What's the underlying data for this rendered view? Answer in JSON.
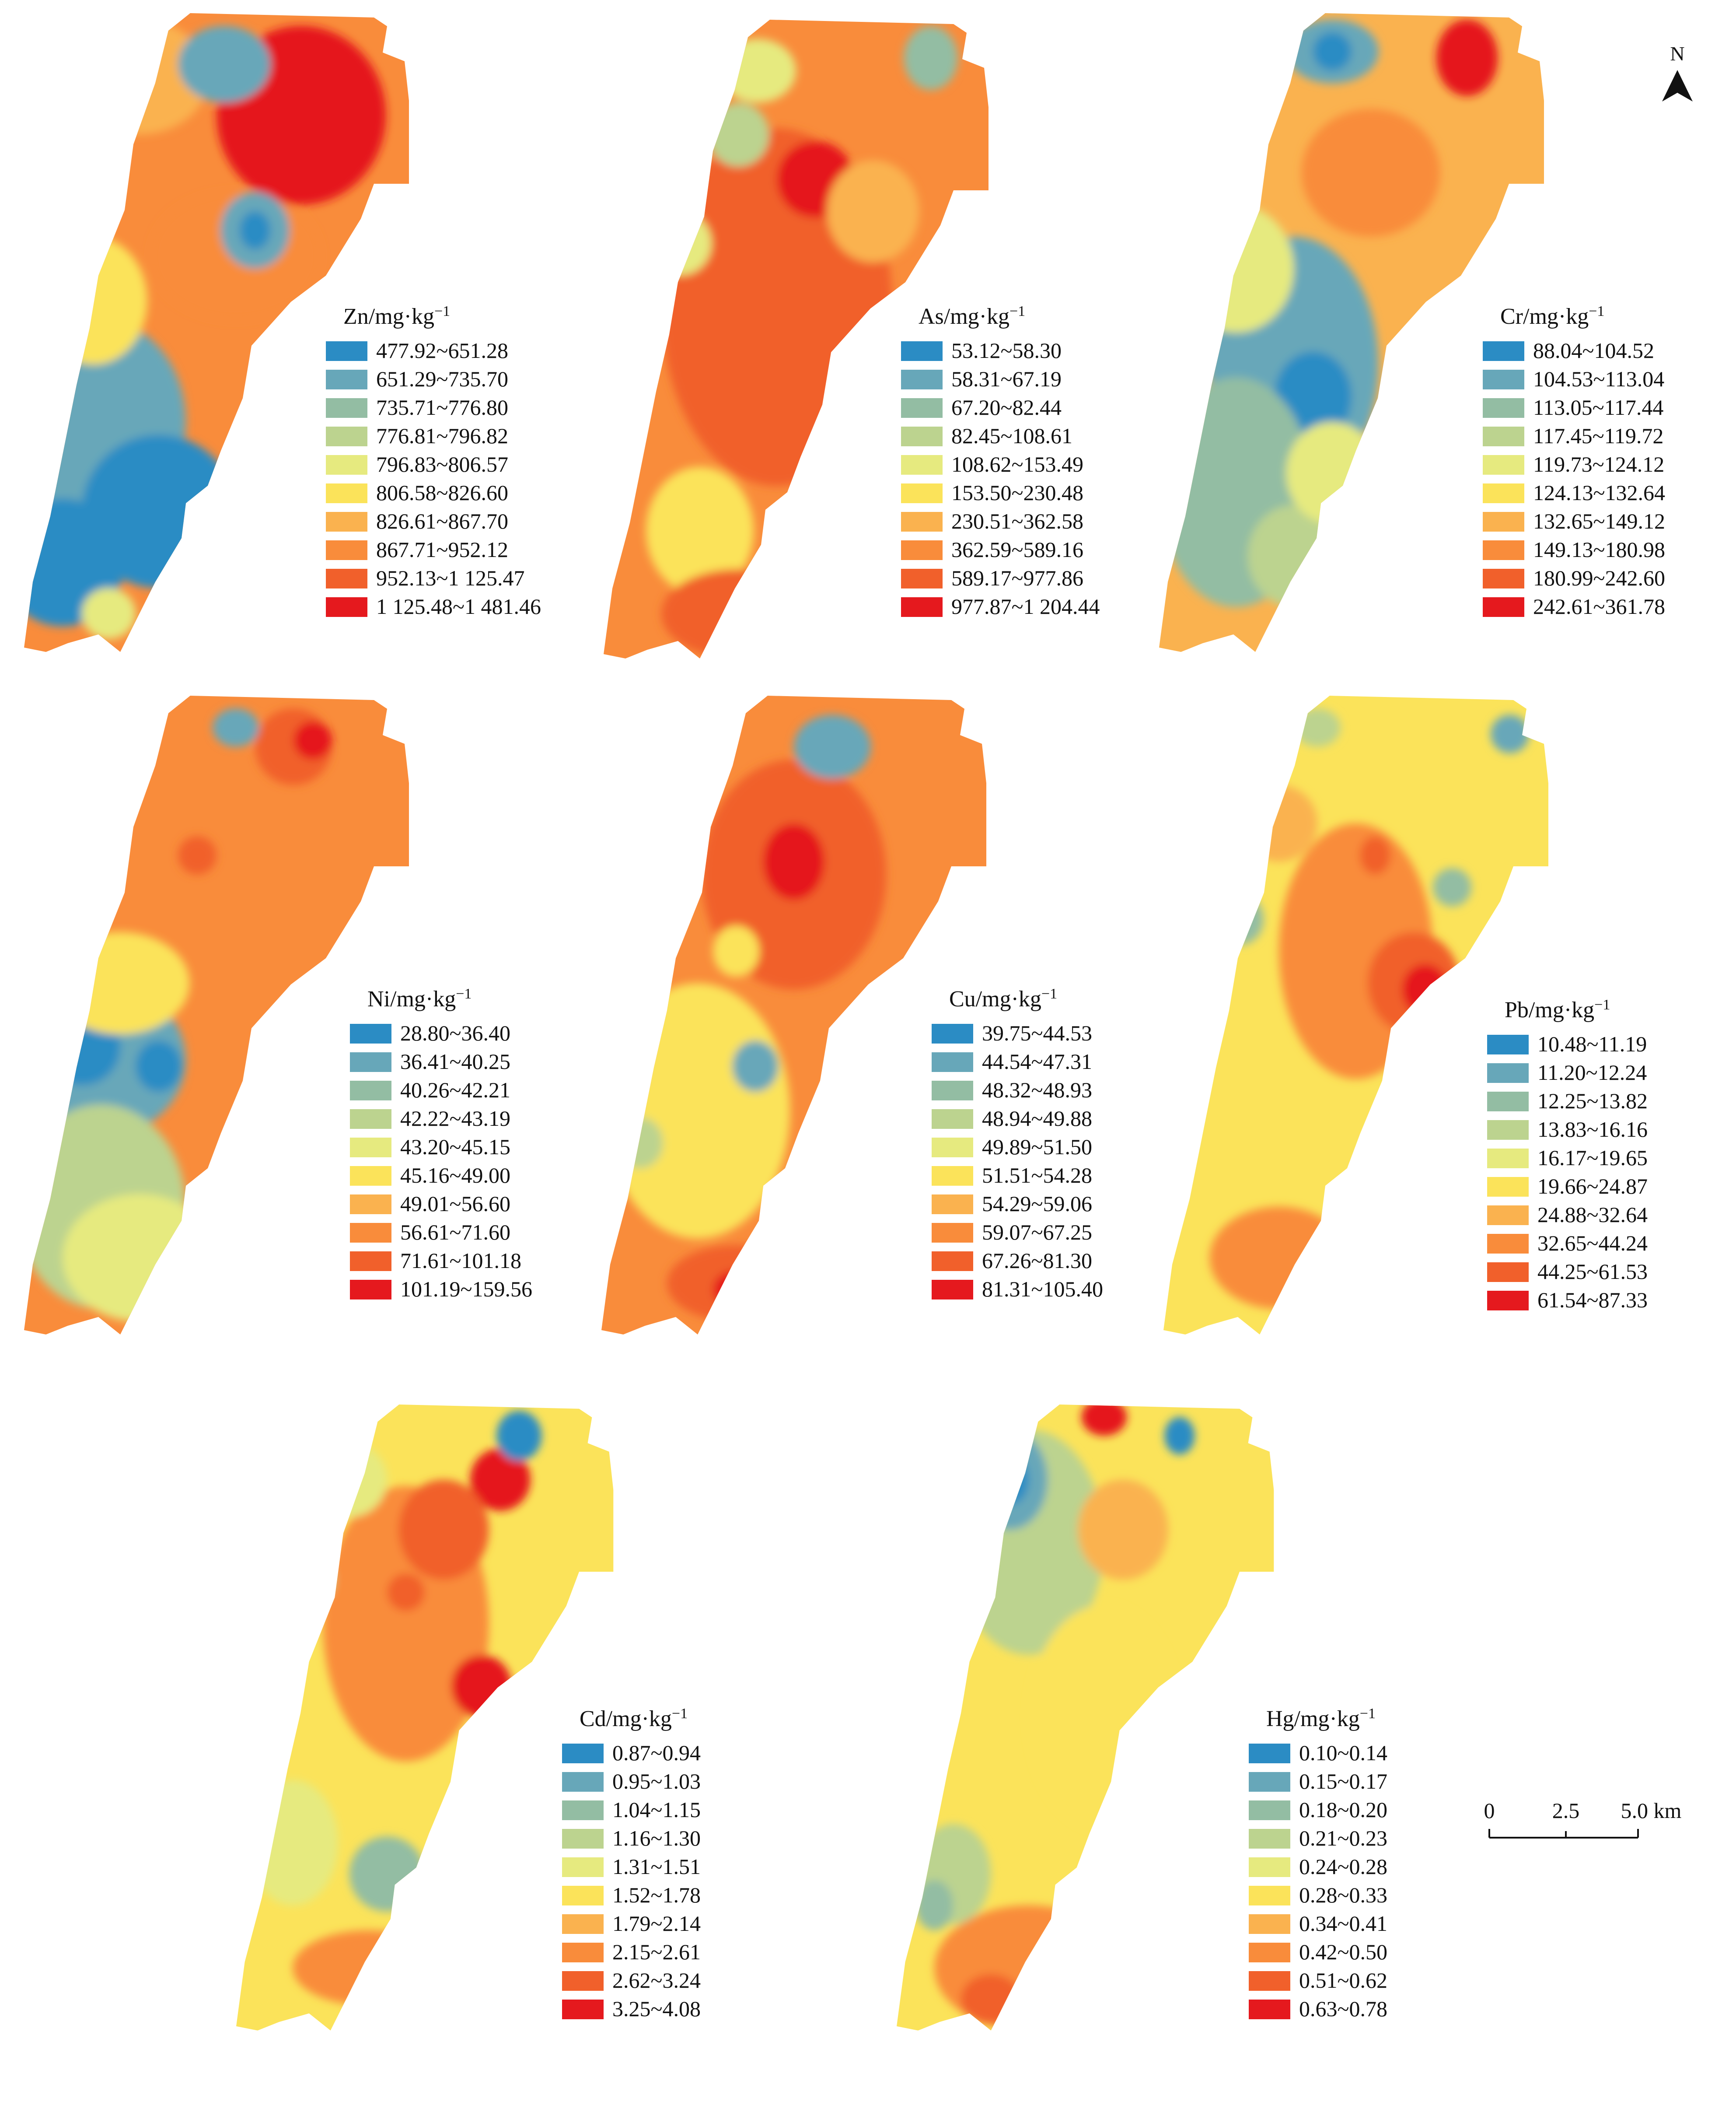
{
  "palette": [
    "#2b8cc4",
    "#67a7b9",
    "#93bda3",
    "#bcd38f",
    "#e6ea7f",
    "#fbe35a",
    "#fab24f",
    "#f98c3b",
    "#f1602b",
    "#e5191e"
  ],
  "north": {
    "label": "N"
  },
  "scale_bar": {
    "labels": [
      "0",
      "2.5",
      "5.0 km"
    ]
  },
  "maps": [
    {
      "element": "Zn",
      "unit": "/mg·kg",
      "exp": "−1",
      "ranges": [
        "477.92~651.28",
        "651.29~735.70",
        "735.71~776.80",
        "776.81~796.82",
        "796.83~806.57",
        "806.58~826.60",
        "826.61~867.70",
        "867.71~952.12",
        "952.13~1 125.47",
        "1 125.48~1 481.46"
      ],
      "base_class": 7,
      "blobs": [
        [
          0.3,
          0.1,
          0.18,
          0.09,
          6
        ],
        [
          0.72,
          0.16,
          0.22,
          0.14,
          9
        ],
        [
          0.55,
          0.38,
          0.22,
          0.1,
          7
        ],
        [
          0.6,
          0.34,
          0.09,
          0.06,
          1
        ],
        [
          0.6,
          0.34,
          0.04,
          0.03,
          0
        ],
        [
          0.52,
          0.08,
          0.12,
          0.06,
          1
        ],
        [
          0.1,
          0.3,
          0.08,
          0.05,
          3
        ],
        [
          0.2,
          0.64,
          0.22,
          0.16,
          1
        ],
        [
          0.35,
          0.78,
          0.2,
          0.12,
          0
        ],
        [
          0.1,
          0.86,
          0.16,
          0.1,
          0
        ],
        [
          0.22,
          0.94,
          0.07,
          0.04,
          4
        ],
        [
          0.18,
          0.45,
          0.14,
          0.1,
          5
        ]
      ]
    },
    {
      "element": "As",
      "unit": "/mg·kg",
      "exp": "−1",
      "ranges": [
        "53.12~58.30",
        "58.31~67.19",
        "67.20~82.44",
        "82.45~108.61",
        "108.62~153.49",
        "153.50~230.48",
        "230.51~362.58",
        "362.59~589.16",
        "589.17~977.86",
        "977.87~1 204.44"
      ],
      "base_class": 7,
      "blobs": [
        [
          0.45,
          0.45,
          0.3,
          0.28,
          8
        ],
        [
          0.55,
          0.25,
          0.1,
          0.06,
          9
        ],
        [
          0.25,
          0.8,
          0.14,
          0.1,
          5
        ],
        [
          0.35,
          0.93,
          0.2,
          0.07,
          8
        ],
        [
          0.2,
          0.35,
          0.08,
          0.05,
          4
        ],
        [
          0.4,
          0.08,
          0.1,
          0.05,
          4
        ],
        [
          0.85,
          0.06,
          0.07,
          0.05,
          2
        ],
        [
          0.35,
          0.18,
          0.08,
          0.05,
          3
        ],
        [
          0.7,
          0.3,
          0.12,
          0.08,
          6
        ]
      ]
    },
    {
      "element": "Cr",
      "unit": "/mg·kg",
      "exp": "−1",
      "ranges": [
        "88.04~104.52",
        "104.53~113.04",
        "113.05~117.44",
        "117.45~119.72",
        "119.73~124.12",
        "124.13~132.64",
        "132.65~149.12",
        "149.13~180.98",
        "180.99~242.60",
        "242.61~361.78"
      ],
      "base_class": 6,
      "blobs": [
        [
          0.55,
          0.25,
          0.18,
          0.1,
          7
        ],
        [
          0.45,
          0.06,
          0.12,
          0.05,
          1
        ],
        [
          0.45,
          0.06,
          0.05,
          0.03,
          0
        ],
        [
          0.8,
          0.07,
          0.08,
          0.06,
          9
        ],
        [
          0.35,
          0.55,
          0.22,
          0.2,
          1
        ],
        [
          0.4,
          0.6,
          0.1,
          0.07,
          0
        ],
        [
          0.2,
          0.75,
          0.2,
          0.18,
          2
        ],
        [
          0.35,
          0.85,
          0.12,
          0.08,
          3
        ],
        [
          0.2,
          0.4,
          0.15,
          0.1,
          4
        ],
        [
          0.45,
          0.72,
          0.12,
          0.08,
          4
        ]
      ]
    },
    {
      "element": "Ni",
      "unit": "/mg·kg",
      "exp": "−1",
      "ranges": [
        "28.80~36.40",
        "36.41~40.25",
        "40.26~42.21",
        "42.22~43.19",
        "43.20~45.15",
        "45.16~49.00",
        "49.01~56.60",
        "56.61~71.60",
        "71.61~101.18",
        "101.19~159.56"
      ],
      "base_class": 7,
      "blobs": [
        [
          0.2,
          0.57,
          0.22,
          0.12,
          1
        ],
        [
          0.15,
          0.55,
          0.1,
          0.06,
          0
        ],
        [
          0.35,
          0.58,
          0.06,
          0.04,
          0
        ],
        [
          0.2,
          0.8,
          0.22,
          0.16,
          3
        ],
        [
          0.3,
          0.88,
          0.2,
          0.1,
          4
        ],
        [
          0.25,
          0.45,
          0.18,
          0.08,
          5
        ],
        [
          0.7,
          0.08,
          0.1,
          0.06,
          8
        ],
        [
          0.75,
          0.07,
          0.05,
          0.03,
          9
        ],
        [
          0.55,
          0.05,
          0.06,
          0.03,
          1
        ],
        [
          0.45,
          0.25,
          0.05,
          0.03,
          8
        ]
      ]
    },
    {
      "element": "Cu",
      "unit": "/mg·kg",
      "exp": "−1",
      "ranges": [
        "39.75~44.53",
        "44.54~47.31",
        "48.32~48.93",
        "48.94~49.88",
        "49.89~51.50",
        "51.51~54.28",
        "54.29~59.06",
        "59.07~67.25",
        "67.26~81.30",
        "81.31~105.40"
      ],
      "base_class": 7,
      "blobs": [
        [
          0.5,
          0.28,
          0.24,
          0.18,
          8
        ],
        [
          0.5,
          0.26,
          0.08,
          0.06,
          9
        ],
        [
          0.6,
          0.08,
          0.1,
          0.05,
          1
        ],
        [
          0.25,
          0.65,
          0.24,
          0.2,
          5
        ],
        [
          0.4,
          0.58,
          0.06,
          0.04,
          1
        ],
        [
          0.35,
          0.92,
          0.18,
          0.06,
          8
        ],
        [
          0.35,
          0.93,
          0.06,
          0.03,
          9
        ],
        [
          0.35,
          0.4,
          0.06,
          0.04,
          5
        ],
        [
          0.1,
          0.7,
          0.06,
          0.04,
          3
        ]
      ]
    },
    {
      "element": "Pb",
      "unit": "/mg·kg",
      "exp": "−1",
      "ranges": [
        "10.48~11.19",
        "11.20~12.24",
        "12.25~13.82",
        "13.83~16.16",
        "16.17~19.65",
        "19.66~24.87",
        "24.88~32.64",
        "32.65~44.24",
        "44.25~61.53",
        "61.54~87.33"
      ],
      "base_class": 5,
      "blobs": [
        [
          0.5,
          0.4,
          0.2,
          0.2,
          7
        ],
        [
          0.65,
          0.45,
          0.12,
          0.08,
          8
        ],
        [
          0.68,
          0.46,
          0.06,
          0.04,
          9
        ],
        [
          0.55,
          0.25,
          0.04,
          0.03,
          8
        ],
        [
          0.3,
          0.88,
          0.18,
          0.08,
          7
        ],
        [
          0.2,
          0.35,
          0.06,
          0.04,
          2
        ],
        [
          0.4,
          0.05,
          0.06,
          0.03,
          3
        ],
        [
          0.75,
          0.3,
          0.05,
          0.03,
          2
        ],
        [
          0.9,
          0.06,
          0.05,
          0.03,
          1
        ],
        [
          0.3,
          0.2,
          0.1,
          0.06,
          6
        ]
      ]
    },
    {
      "element": "Cd",
      "unit": "/mg·kg",
      "exp": "−1",
      "ranges": [
        "0.87~0.94",
        "0.95~1.03",
        "1.04~1.15",
        "1.16~1.30",
        "1.31~1.51",
        "1.52~1.78",
        "1.79~2.14",
        "2.15~2.61",
        "2.62~3.24",
        "3.25~4.08"
      ],
      "base_class": 5,
      "blobs": [
        [
          0.45,
          0.35,
          0.22,
          0.22,
          7
        ],
        [
          0.65,
          0.45,
          0.08,
          0.05,
          9
        ],
        [
          0.7,
          0.12,
          0.08,
          0.05,
          9
        ],
        [
          0.55,
          0.2,
          0.12,
          0.08,
          8
        ],
        [
          0.45,
          0.3,
          0.05,
          0.03,
          8
        ],
        [
          0.75,
          0.05,
          0.06,
          0.04,
          0
        ],
        [
          0.3,
          0.12,
          0.1,
          0.06,
          4
        ],
        [
          0.2,
          0.28,
          0.06,
          0.04,
          3
        ],
        [
          0.4,
          0.75,
          0.1,
          0.06,
          2
        ],
        [
          0.35,
          0.9,
          0.2,
          0.06,
          7
        ],
        [
          0.15,
          0.7,
          0.12,
          0.1,
          4
        ]
      ]
    },
    {
      "element": "Hg",
      "unit": "/mg·kg",
      "exp": "−1",
      "ranges": [
        "0.10~0.14",
        "0.15~0.17",
        "0.18~0.20",
        "0.21~0.23",
        "0.24~0.28",
        "0.28~0.33",
        "0.34~0.41",
        "0.42~0.50",
        "0.51~0.62",
        "0.63~0.78"
      ],
      "base_class": 5,
      "blobs": [
        [
          0.35,
          0.22,
          0.2,
          0.18,
          3
        ],
        [
          0.3,
          0.12,
          0.1,
          0.08,
          1
        ],
        [
          0.3,
          0.12,
          0.05,
          0.04,
          0
        ],
        [
          0.15,
          0.25,
          0.08,
          0.06,
          1
        ],
        [
          0.55,
          0.02,
          0.06,
          0.03,
          9
        ],
        [
          0.75,
          0.05,
          0.04,
          0.03,
          0
        ],
        [
          0.6,
          0.2,
          0.12,
          0.08,
          6
        ],
        [
          0.55,
          0.5,
          0.2,
          0.18,
          5
        ],
        [
          0.35,
          0.9,
          0.25,
          0.1,
          7
        ],
        [
          0.25,
          0.95,
          0.08,
          0.04,
          8
        ],
        [
          0.15,
          0.75,
          0.1,
          0.08,
          3
        ],
        [
          0.1,
          0.8,
          0.05,
          0.04,
          2
        ]
      ]
    }
  ]
}
